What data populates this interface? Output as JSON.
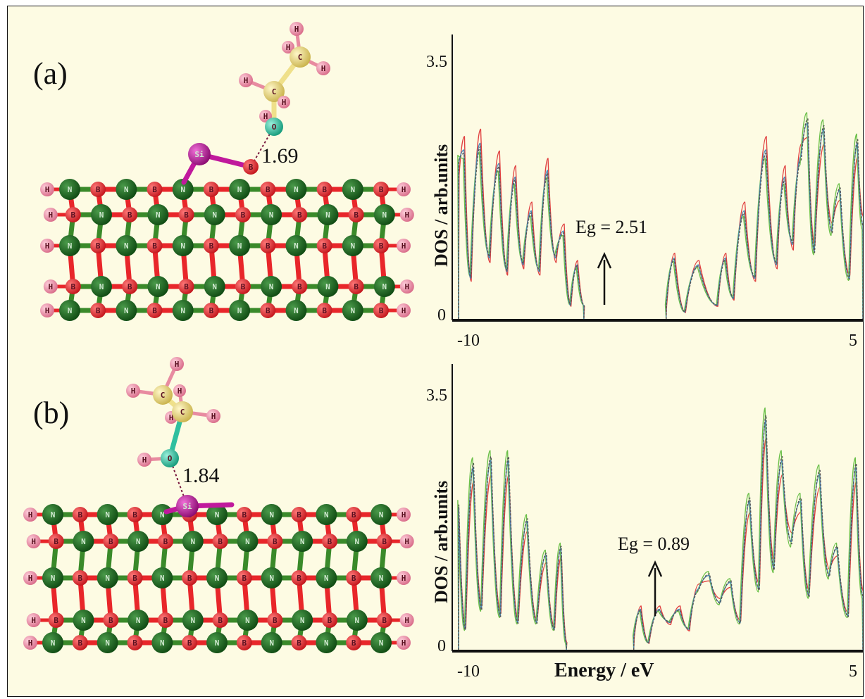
{
  "panels": [
    {
      "label": "(a)",
      "bond_distance": "1.69"
    },
    {
      "label": "(b)",
      "bond_distance": "1.84"
    }
  ],
  "atom_symbols": {
    "hydrogen": "H",
    "carbon": "C",
    "oxygen": "O",
    "silicon": "Si",
    "nitrogen": "N",
    "boron": "B"
  },
  "atom_colors": {
    "H": "#e88ba0",
    "C": "#efe08a",
    "O": "#2fbf9f",
    "Si": "#c0199c",
    "N": "#1f6b1f",
    "B": "#e8262a",
    "bond_green": "#3a8a2a",
    "bond_red": "#e8262a"
  },
  "dos_line_colors": {
    "red": "#e04040",
    "green": "#6cc04a",
    "blue": "#4a8ab8",
    "dark": "#555555"
  },
  "chart_data": [
    {
      "type": "line",
      "xlabel": "",
      "ylabel": "DOS / arb.units",
      "xlim": [
        -10,
        5
      ],
      "ylim": [
        0,
        4
      ],
      "x_tick_labels": [
        "-10",
        "5"
      ],
      "y_tick_labels": [
        "0",
        "3.5"
      ],
      "annotation": "Eg = 2.51",
      "arrow_at_energy": -4.1,
      "bands": {
        "valence": [
          [
            -10.0,
            2.3
          ],
          [
            -9.8,
            2.5
          ],
          [
            -9.55,
            0.6
          ],
          [
            -9.2,
            2.6
          ],
          [
            -8.85,
            0.9
          ],
          [
            -8.5,
            2.3
          ],
          [
            -8.2,
            0.7
          ],
          [
            -7.9,
            2.1
          ],
          [
            -7.6,
            0.8
          ],
          [
            -7.3,
            1.6
          ],
          [
            -7.0,
            0.7
          ],
          [
            -6.7,
            2.2
          ],
          [
            -6.4,
            0.9
          ],
          [
            -6.1,
            1.3
          ],
          [
            -5.85,
            0.2
          ],
          [
            -5.6,
            0.8
          ],
          [
            -5.35,
            0.2
          ]
        ],
        "conduction": [
          [
            -2.3,
            0.2
          ],
          [
            -2.0,
            0.9
          ],
          [
            -1.6,
            0.1
          ],
          [
            -1.1,
            0.8
          ],
          [
            -0.4,
            0.2
          ],
          [
            -0.1,
            0.9
          ],
          [
            0.2,
            0.3
          ],
          [
            0.6,
            1.6
          ],
          [
            1.0,
            0.6
          ],
          [
            1.4,
            2.5
          ],
          [
            1.8,
            0.8
          ],
          [
            2.1,
            2.1
          ],
          [
            2.4,
            1.1
          ],
          [
            2.7,
            2.4
          ],
          [
            2.95,
            2.9
          ],
          [
            3.2,
            1.0
          ],
          [
            3.55,
            2.8
          ],
          [
            3.85,
            1.3
          ],
          [
            4.15,
            1.9
          ],
          [
            4.5,
            0.6
          ],
          [
            4.8,
            2.6
          ],
          [
            5.0,
            1.4
          ]
        ]
      }
    },
    {
      "type": "line",
      "xlabel": "Energy / eV",
      "ylabel": "DOS / arb.units",
      "xlim": [
        -10,
        5
      ],
      "ylim": [
        0,
        4
      ],
      "x_tick_labels": [
        "-10",
        "5"
      ],
      "y_tick_labels": [
        "0",
        "3.5"
      ],
      "annotation": "Eg = 0.89",
      "arrow_at_energy": -3.1,
      "bands": {
        "valence": [
          [
            -10.0,
            2.1
          ],
          [
            -9.75,
            0.3
          ],
          [
            -9.45,
            2.7
          ],
          [
            -9.15,
            0.6
          ],
          [
            -8.8,
            2.8
          ],
          [
            -8.45,
            0.5
          ],
          [
            -8.15,
            2.8
          ],
          [
            -7.8,
            0.4
          ],
          [
            -7.45,
            1.9
          ],
          [
            -7.1,
            0.4
          ],
          [
            -6.75,
            1.4
          ],
          [
            -6.45,
            0.3
          ],
          [
            -6.2,
            1.5
          ],
          [
            -6.0,
            0.1
          ]
        ],
        "conduction": [
          [
            -3.5,
            0.2
          ],
          [
            -3.25,
            0.6
          ],
          [
            -2.95,
            0.1
          ],
          [
            -2.55,
            0.6
          ],
          [
            -2.15,
            0.4
          ],
          [
            -1.8,
            0.6
          ],
          [
            -1.45,
            0.3
          ],
          [
            -1.1,
            0.9
          ],
          [
            -0.7,
            1.1
          ],
          [
            -0.3,
            0.7
          ],
          [
            0.1,
            1.0
          ],
          [
            0.45,
            0.4
          ],
          [
            0.8,
            2.2
          ],
          [
            1.15,
            0.9
          ],
          [
            1.4,
            3.4
          ],
          [
            1.7,
            1.2
          ],
          [
            2.0,
            2.8
          ],
          [
            2.35,
            1.6
          ],
          [
            2.7,
            2.2
          ],
          [
            3.0,
            0.8
          ],
          [
            3.4,
            2.6
          ],
          [
            3.75,
            1.1
          ],
          [
            4.05,
            1.5
          ],
          [
            4.45,
            0.5
          ],
          [
            4.75,
            2.7
          ],
          [
            5.0,
            0.8
          ]
        ]
      }
    }
  ]
}
